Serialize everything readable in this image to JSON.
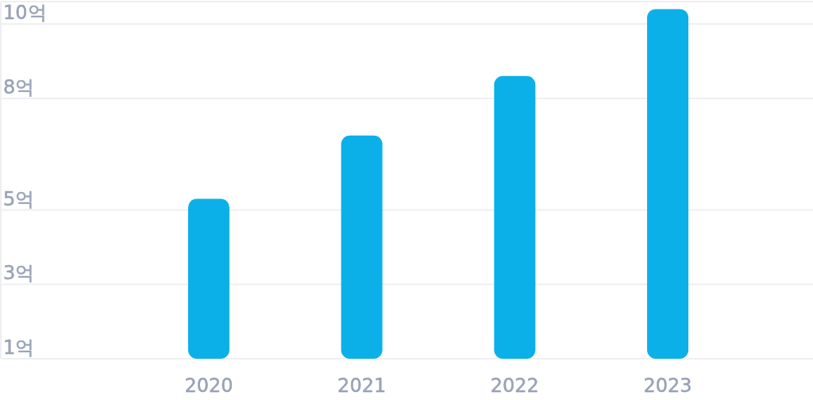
{
  "chart_data": {
    "type": "bar",
    "categories": [
      "2020",
      "2021",
      "2022",
      "2023"
    ],
    "values": [
      5.3,
      7.0,
      8.6,
      10.4
    ],
    "color": "#0bb0e8",
    "ylim": [
      1,
      10.6
    ],
    "yticks": [
      {
        "value": 1,
        "label": "1억"
      },
      {
        "value": 3,
        "label": "3억"
      },
      {
        "value": 5,
        "label": "5억"
      },
      {
        "value": 8,
        "label": "8억"
      },
      {
        "value": 10,
        "label": "10억"
      }
    ],
    "grid": "y"
  }
}
